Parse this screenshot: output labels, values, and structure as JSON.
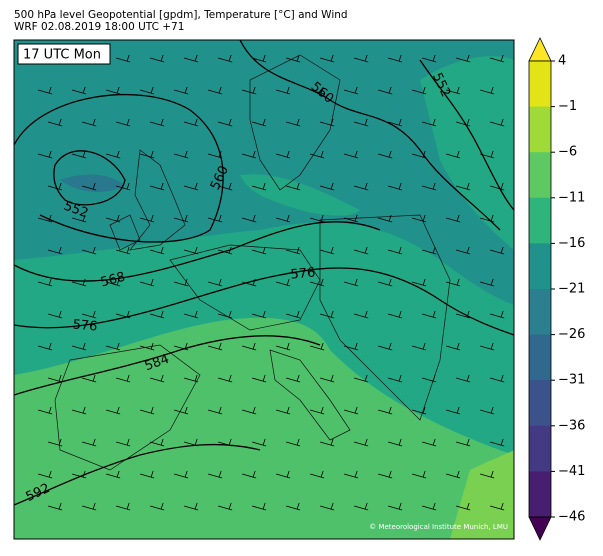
{
  "header": {
    "title": "500 hPa level Geopotential [gpdm], Temperature [°C] and Wind",
    "subtitle": "WRF 02.08.2019 18:00 UTC +71"
  },
  "map": {
    "time_label": "17 UTC Mon",
    "contour_labels": [
      "560",
      "552",
      "560",
      "552",
      "568",
      "576",
      "576",
      "584",
      "592"
    ],
    "credit": "© Meteorological Institute Munich, LMU"
  },
  "colorbar": {
    "ticks": [
      "4",
      "−1",
      "−6",
      "−11",
      "−16",
      "−21",
      "−26",
      "−31",
      "−36",
      "−41",
      "−46"
    ]
  }
}
